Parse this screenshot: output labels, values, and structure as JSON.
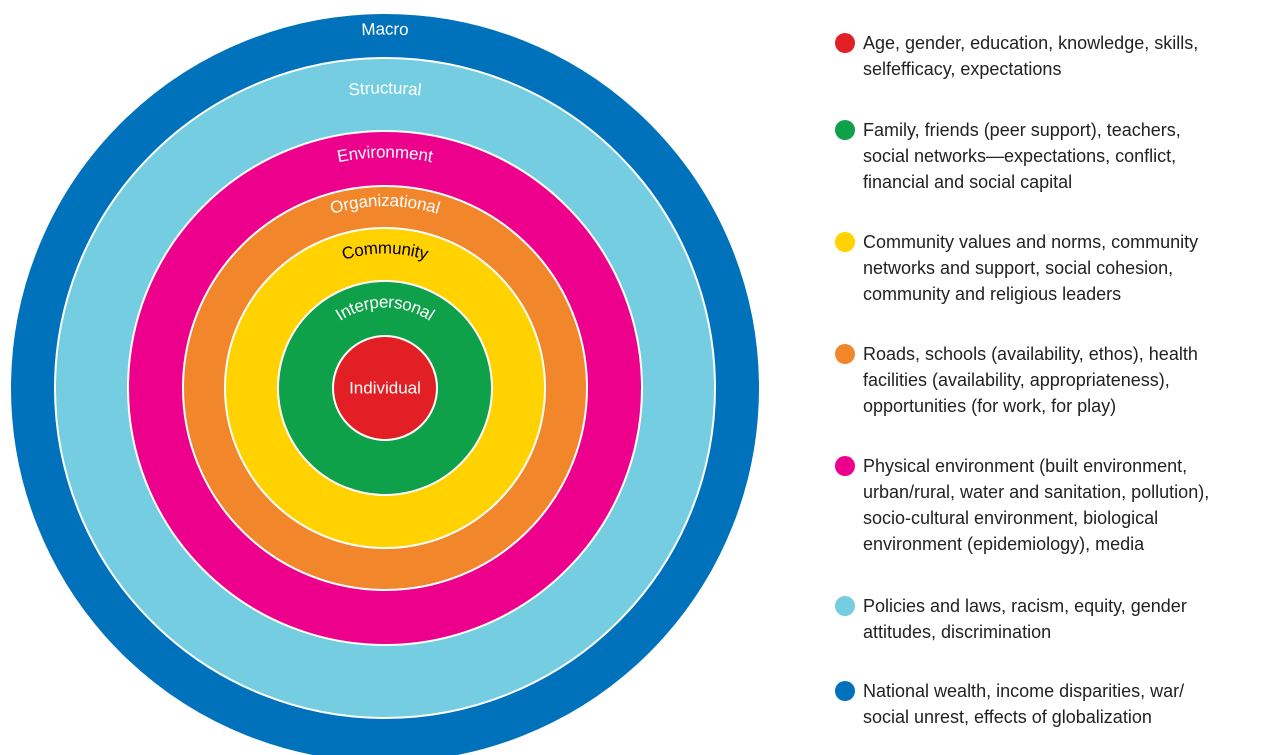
{
  "rings": [
    {
      "label": "Individual",
      "color": "#e31f26",
      "label_color": "#ffffff",
      "description": [
        "Age, gender, education, knowledge, skills,",
        "selfefficacy, expectations"
      ]
    },
    {
      "label": "Interpersonal",
      "color": "#0fa14a",
      "label_color": "#ffffff",
      "description": [
        "Family, friends (peer support), teachers,",
        "social networks—expectations, conflict,",
        "financial and social capital"
      ]
    },
    {
      "label": "Community",
      "color": "#ffd200",
      "label_color": "#000000",
      "description": [
        "Community values and norms, community",
        "networks and support, social cohesion,",
        "community and religious leaders"
      ]
    },
    {
      "label": "Organizational",
      "color": "#f2862a",
      "label_color": "#ffffff",
      "description": [
        "Roads, schools (availability, ethos), health",
        "facilities (availability, appropriateness),",
        "opportunities (for work, for play)"
      ]
    },
    {
      "label": "Environment",
      "color": "#ec008c",
      "label_color": "#ffffff",
      "description": [
        "Physical environment (built environment,",
        "urban/rural, water and sanitation, pollution),",
        "socio-cultural environment, biological",
        "environment (epidemiology), media"
      ]
    },
    {
      "label": "Structural",
      "color": "#74cde0",
      "label_color": "#ffffff",
      "description": [
        "Policies and laws, racism, equity, gender",
        "attitudes, discrimination"
      ]
    },
    {
      "label": "Macro",
      "color": "#0072bc",
      "label_color": "#ffffff",
      "description": [
        "National wealth, income disparities, war/",
        "social unrest, effects of globalization"
      ]
    }
  ]
}
